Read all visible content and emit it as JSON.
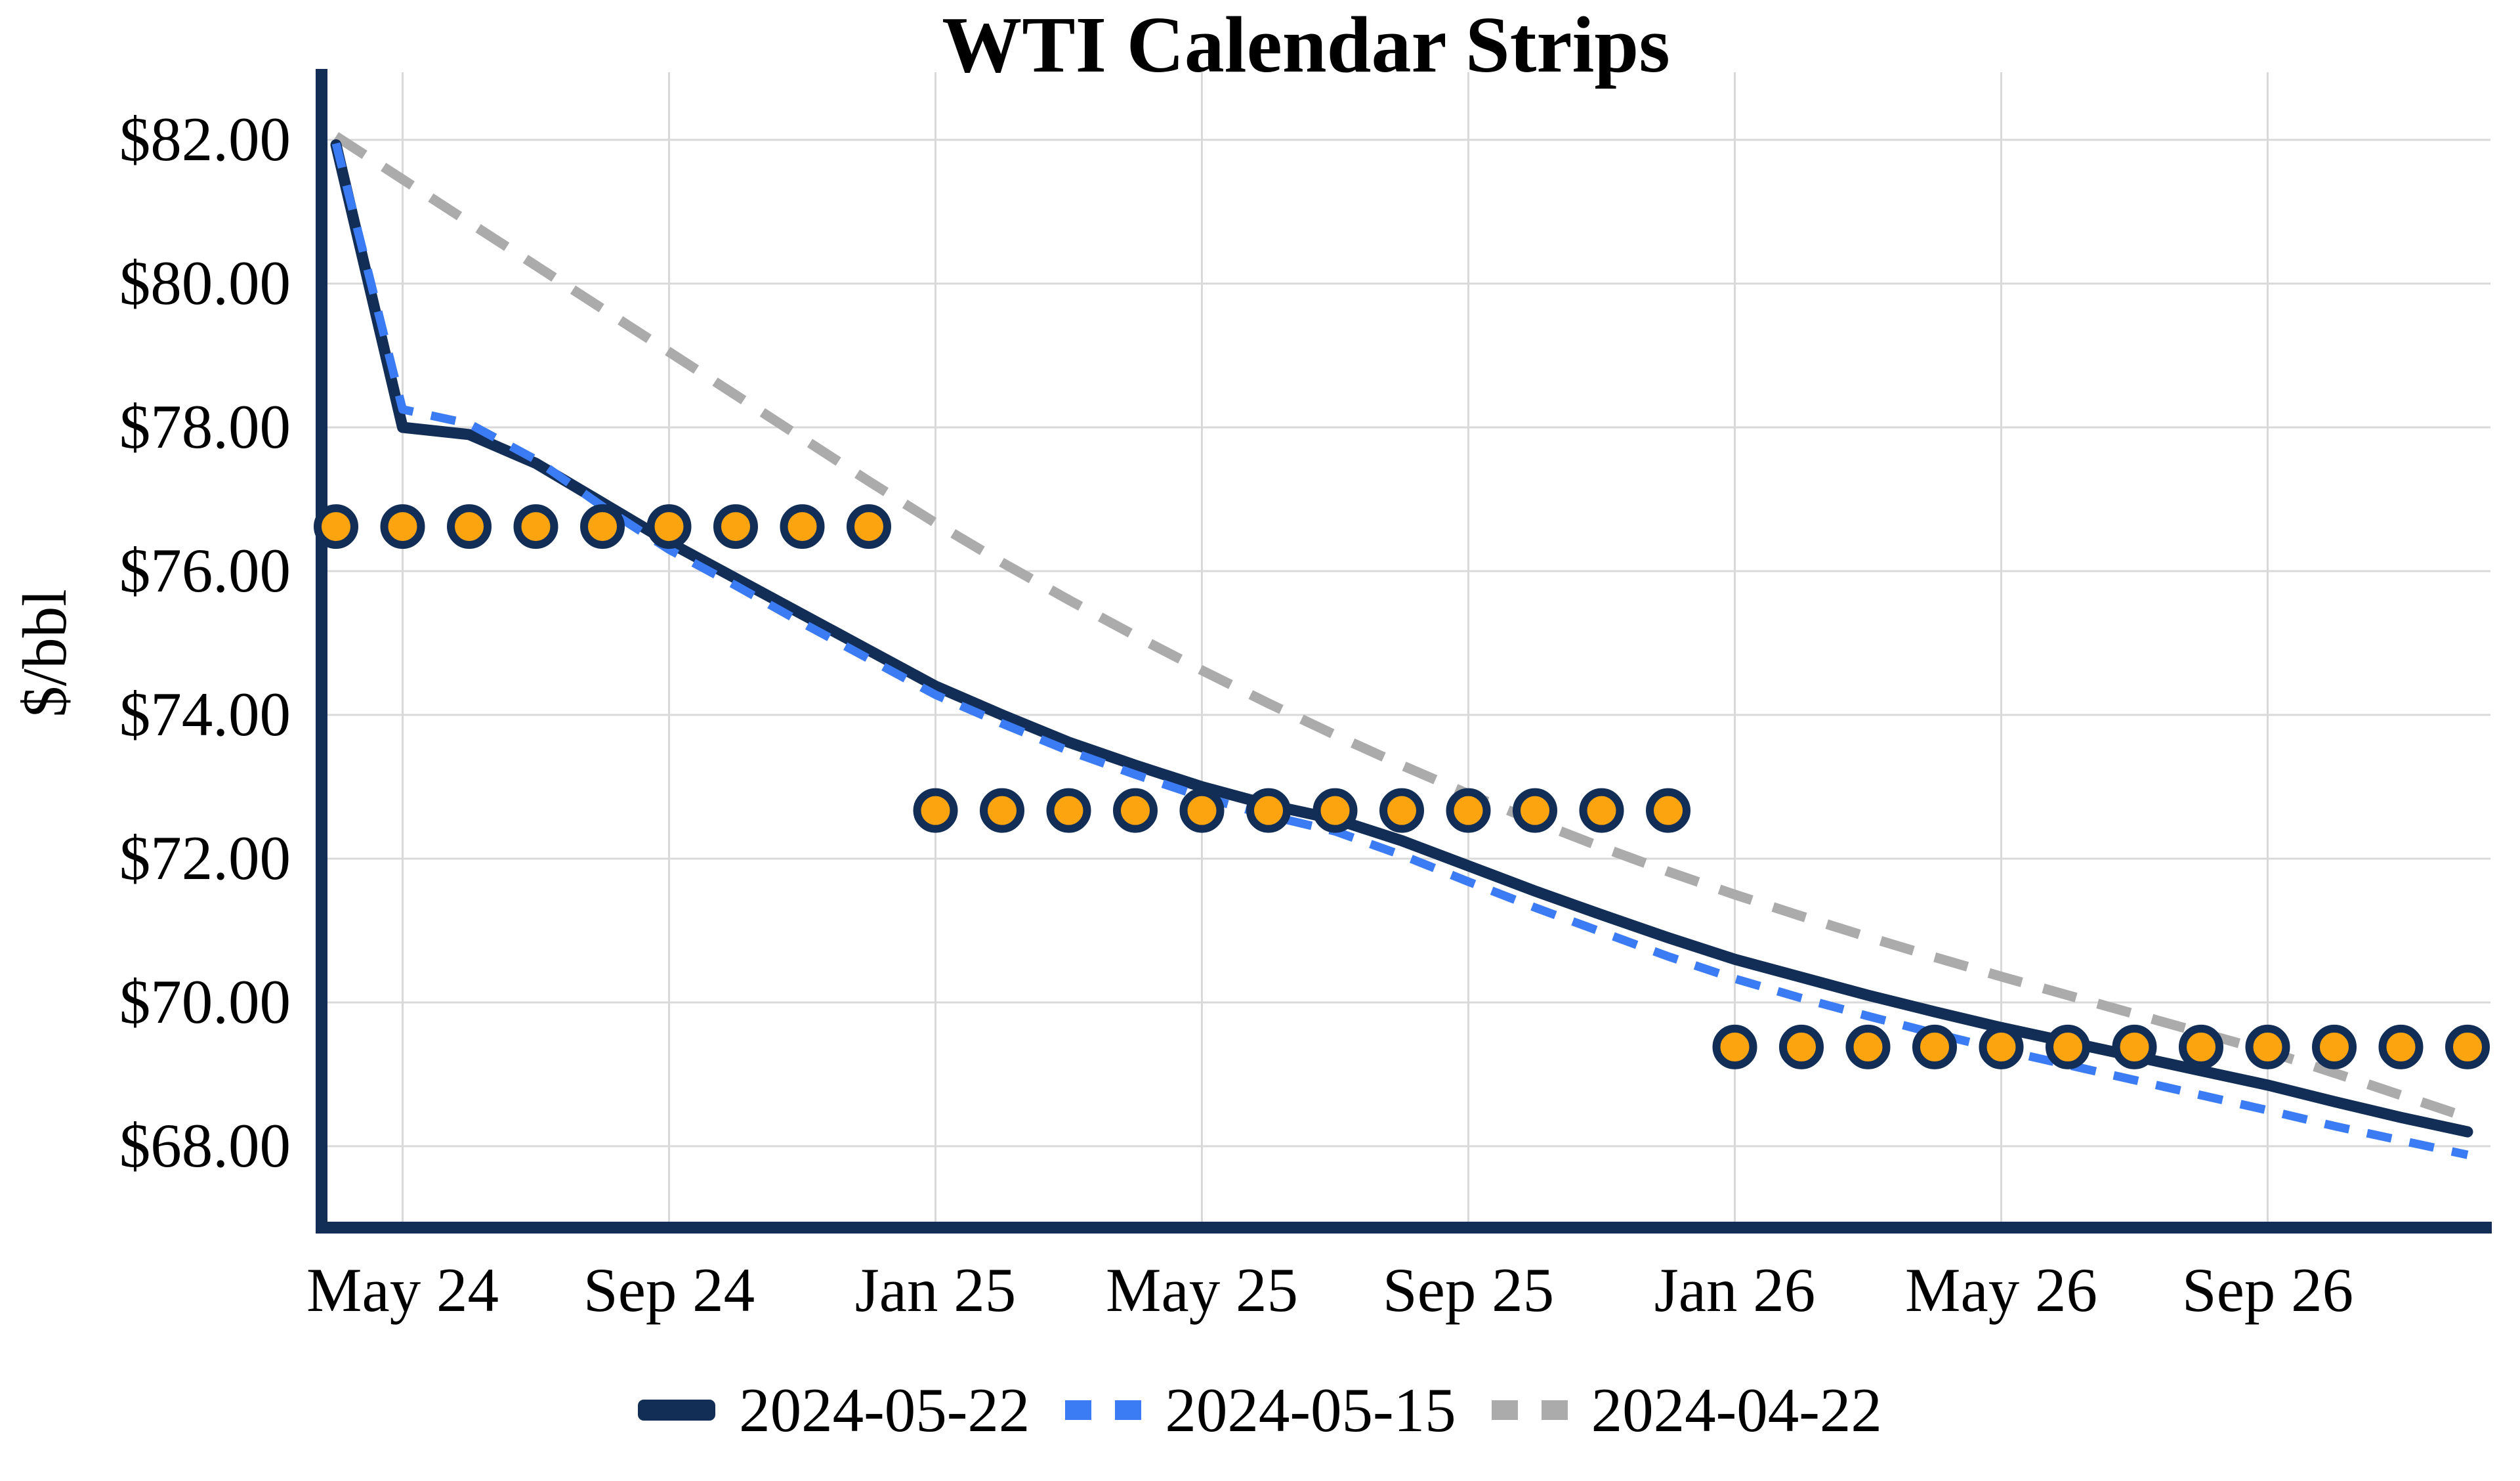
{
  "title": "WTI Calendar Strips",
  "y_axis_label": "$/bbl",
  "colors": {
    "series_navy": "#132e56",
    "series_blue": "#3b7bf4",
    "series_gray": "#ababab",
    "marker_fill": "#fca40f",
    "marker_edge": "#132e56",
    "axis": "#132e56",
    "gridline": "#d9d9d9",
    "text": "#000000",
    "background": "#ffffff"
  },
  "chart_data": {
    "type": "line",
    "title": "WTI Calendar Strips",
    "xlabel": "",
    "ylabel": "$/bbl",
    "ylim": [
      66.9,
      82.9
    ],
    "grid": true,
    "legend_position": "bottom",
    "x_months": [
      "Apr-24",
      "May-24",
      "Jun-24",
      "Jul-24",
      "Aug-24",
      "Sep-24",
      "Oct-24",
      "Nov-24",
      "Dec-24",
      "Jan-25",
      "Feb-25",
      "Mar-25",
      "Apr-25",
      "May-25",
      "Jun-25",
      "Jul-25",
      "Aug-25",
      "Sep-25",
      "Oct-25",
      "Nov-25",
      "Dec-25",
      "Jan-26",
      "Feb-26",
      "Mar-26",
      "Apr-26",
      "May-26",
      "Jun-26",
      "Jul-26",
      "Aug-26",
      "Sep-26",
      "Oct-26",
      "Nov-26",
      "Dec-26"
    ],
    "x_ticks": {
      "labels": [
        "May 24",
        "Sep 24",
        "Jan 25",
        "May 25",
        "Sep 25",
        "Jan 26",
        "May 26",
        "Sep 26"
      ],
      "month_indices": [
        1,
        5,
        9,
        13,
        17,
        21,
        25,
        29
      ]
    },
    "y_ticks": {
      "values": [
        82,
        80,
        78,
        76,
        74,
        72,
        70,
        68
      ],
      "labels": [
        "$82.00",
        "$80.00",
        "$78.00",
        "$76.00",
        "$74.00",
        "$72.00",
        "$70.00",
        "$68.00"
      ]
    },
    "series": [
      {
        "name": "2024-05-22",
        "style": "solid",
        "color": "#132e56",
        "values": [
          81.93,
          78.0,
          77.9,
          77.5,
          76.95,
          76.4,
          75.9,
          75.4,
          74.9,
          74.4,
          74.0,
          73.62,
          73.3,
          73.0,
          72.75,
          72.55,
          72.25,
          71.9,
          71.55,
          71.22,
          70.9,
          70.6,
          70.35,
          70.1,
          69.87,
          69.65,
          69.45,
          69.25,
          69.05,
          68.85,
          68.62,
          68.4,
          68.2
        ]
      },
      {
        "name": "2024-05-15",
        "style": "dashed",
        "color": "#3b7bf4",
        "values": [
          81.95,
          78.25,
          78.05,
          77.55,
          76.9,
          76.3,
          75.8,
          75.28,
          74.78,
          74.28,
          73.88,
          73.5,
          73.17,
          72.86,
          72.6,
          72.38,
          72.05,
          71.68,
          71.32,
          70.98,
          70.64,
          70.33,
          70.06,
          69.81,
          69.57,
          69.34,
          69.13,
          68.92,
          68.71,
          68.5,
          68.28,
          68.08,
          67.88
        ]
      },
      {
        "name": "2024-04-22",
        "style": "dashed",
        "color": "#ababab",
        "values": [
          82.05,
          81.45,
          80.85,
          80.25,
          79.65,
          79.05,
          78.45,
          77.85,
          77.25,
          76.67,
          76.12,
          75.6,
          75.1,
          74.62,
          74.16,
          73.72,
          73.3,
          72.9,
          72.52,
          72.16,
          71.82,
          71.5,
          71.2,
          70.91,
          70.63,
          70.36,
          70.1,
          69.84,
          69.58,
          69.32,
          69.02,
          68.71,
          68.4
        ]
      }
    ],
    "calendar_strip_markers": {
      "marker": "circle",
      "fill": "#fca40f",
      "edge": "#132e56",
      "strips": [
        {
          "start_month": "Apr-24",
          "end_month": "Dec-24",
          "start_index": 0,
          "count": 9,
          "value": 76.62
        },
        {
          "start_month": "Jan-25",
          "end_month": "Dec-25",
          "start_index": 9,
          "count": 12,
          "value": 72.67
        },
        {
          "start_month": "Jan-26",
          "end_month": "Dec-26",
          "start_index": 21,
          "count": 12,
          "value": 69.38
        }
      ]
    }
  },
  "legend": {
    "items": [
      {
        "label": "2024-05-22",
        "swatch": "solid-line-swatch",
        "color": "#132e56"
      },
      {
        "label": "2024-05-15",
        "swatch": "dashed-line-swatch",
        "color": "#3b7bf4"
      },
      {
        "label": "2024-04-22",
        "swatch": "dashed-line-swatch",
        "color": "#ababab"
      }
    ]
  }
}
